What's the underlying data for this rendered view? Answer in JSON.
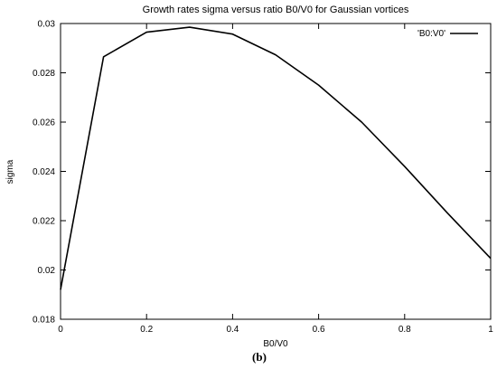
{
  "chart_data": {
    "type": "line",
    "title": "Growth rates sigma versus ratio B0/V0 for Gaussian vortices",
    "xlabel": "B0/V0",
    "ylabel": "sigma",
    "xlim": [
      0,
      1
    ],
    "ylim": [
      0.018,
      0.03
    ],
    "xticks": [
      "0",
      "0.2",
      "0.4",
      "0.6",
      "0.8",
      "1"
    ],
    "yticks": [
      "0.018",
      "0.02",
      "0.022",
      "0.024",
      "0.026",
      "0.028",
      "0.03"
    ],
    "grid": false,
    "legend_position": "top-right",
    "series": [
      {
        "name": "'B0:V0'",
        "color": "#000000",
        "x": [
          0,
          0.1,
          0.2,
          0.3,
          0.4,
          0.5,
          0.6,
          0.7,
          0.8,
          0.9,
          1.0
        ],
        "y": [
          0.0192,
          0.02865,
          0.02965,
          0.02985,
          0.02957,
          0.02873,
          0.0275,
          0.026,
          0.0242,
          0.0223,
          0.02047
        ]
      }
    ]
  },
  "caption": "(b)"
}
